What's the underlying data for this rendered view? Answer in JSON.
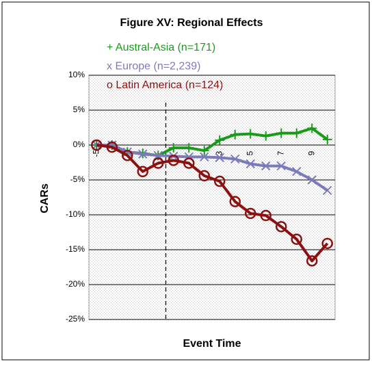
{
  "chart_data": {
    "type": "line",
    "title": "Figure XV: Regional Effects",
    "x_label": "Event Time",
    "y_label": "CARs",
    "categories": [
      "-5",
      null,
      null,
      null,
      null,
      null,
      null,
      null,
      "3",
      null,
      "5",
      null,
      "7",
      null,
      "9",
      null
    ],
    "series": [
      {
        "name": "+ Austral-Asia (n=171)",
        "color": "#1a9a1a",
        "marker": "plus",
        "values": [
          0,
          0,
          -1.0,
          -1.2,
          -1.5,
          -0.4,
          -0.4,
          -0.8,
          0.7,
          1.5,
          1.6,
          1.3,
          1.7,
          1.7,
          2.4,
          0.8
        ]
      },
      {
        "name": "x Europe (n=2,239)",
        "color": "#7b7bb8",
        "marker": "x",
        "values": [
          0,
          0,
          -1.0,
          -1.3,
          -1.5,
          -1.6,
          -1.7,
          -1.7,
          -1.8,
          -2.0,
          -2.7,
          -3.0,
          -3.0,
          -3.8,
          -5.0,
          -6.5
        ]
      },
      {
        "name": "o Latin America (n=124)",
        "color": "#8b1010",
        "marker": "circle",
        "values": [
          0,
          -0.3,
          -1.5,
          -3.8,
          -2.6,
          -2.2,
          -2.6,
          -4.4,
          -5.2,
          -8.1,
          -9.8,
          -10.1,
          -11.7,
          -13.5,
          -16.6,
          -14.1
        ]
      }
    ],
    "ylim": [
      -25,
      10
    ],
    "yticks": [
      {
        "value": -25,
        "label": "-25%"
      },
      {
        "value": -20,
        "label": "-20%"
      },
      {
        "value": -15,
        "label": "-15%"
      },
      {
        "value": -10,
        "label": "-10%"
      },
      {
        "value": -5,
        "label": "-5%"
      },
      {
        "value": 0,
        "label": "0%"
      },
      {
        "value": 5,
        "label": "5%"
      },
      {
        "value": 10,
        "label": "10%"
      }
    ],
    "grid": true
  }
}
